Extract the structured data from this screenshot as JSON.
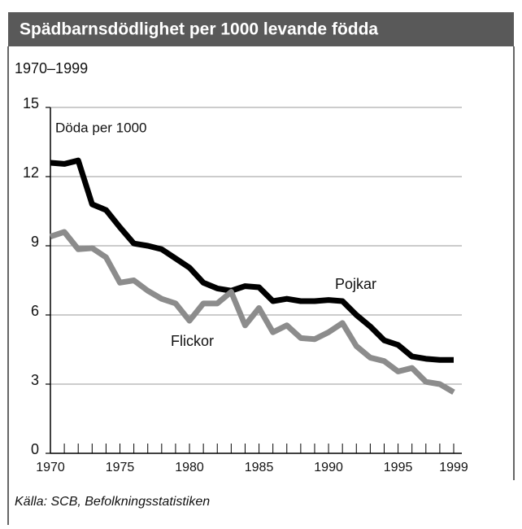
{
  "chart_data": {
    "type": "line",
    "title": "Spädbarnsdödlighet per 1000 levande födda",
    "subtitle": "1970–1999",
    "y_label": "Döda per 1000",
    "source": "Källa: SCB, Befolkningsstatistiken",
    "x": [
      1970,
      1971,
      1972,
      1973,
      1974,
      1975,
      1976,
      1977,
      1978,
      1979,
      1980,
      1981,
      1982,
      1983,
      1984,
      1985,
      1986,
      1987,
      1988,
      1989,
      1990,
      1991,
      1992,
      1993,
      1994,
      1995,
      1996,
      1997,
      1998,
      1999
    ],
    "series": [
      {
        "name": "Pojkar",
        "color": "#000000",
        "values": [
          12.6,
          12.55,
          12.7,
          10.8,
          10.55,
          9.8,
          9.1,
          9.0,
          8.85,
          8.45,
          8.05,
          7.4,
          7.15,
          7.05,
          7.25,
          7.2,
          6.6,
          6.7,
          6.6,
          6.6,
          6.65,
          6.6,
          6.0,
          5.5,
          4.9,
          4.7,
          4.2,
          4.1,
          4.05,
          4.05
        ]
      },
      {
        "name": "Flickor",
        "color": "#8c8c8c",
        "values": [
          9.4,
          9.6,
          8.85,
          8.9,
          8.5,
          7.4,
          7.5,
          7.05,
          6.7,
          6.5,
          5.75,
          6.5,
          6.5,
          7.0,
          5.55,
          6.3,
          5.25,
          5.55,
          5.0,
          4.95,
          5.25,
          5.65,
          4.65,
          4.15,
          4.0,
          3.55,
          3.7,
          3.1,
          3.0,
          2.65
        ]
      }
    ],
    "xlim": [
      1970,
      1999
    ],
    "xticks": [
      1970,
      1975,
      1980,
      1985,
      1990,
      1995,
      1999
    ],
    "ylim": [
      0,
      15
    ],
    "yticks": [
      0,
      3,
      6,
      9,
      12,
      15
    ],
    "grid": true
  }
}
